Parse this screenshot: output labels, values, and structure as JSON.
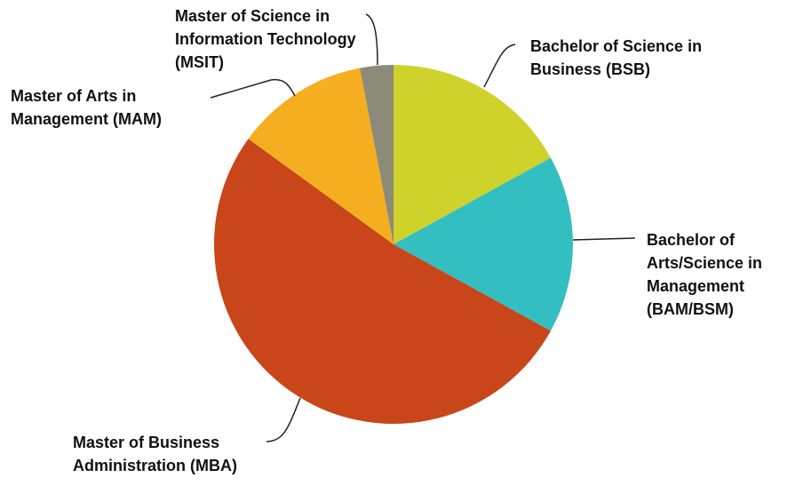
{
  "chart_data": {
    "type": "pie",
    "categories": [
      "Bachelor of Science in Business (BSB)",
      "Bachelor of Arts/Science in Management (BAM/BSM)",
      "Master of Business Administration (MBA)",
      "Master of Arts in Management (MAM)",
      "Master of Science in Information Technology (MSIT)"
    ],
    "values": [
      17,
      16,
      52,
      12,
      3
    ],
    "colors": [
      "#cfd22a",
      "#33bfc1",
      "#c8461a",
      "#f5ae20",
      "#8c8a78"
    ]
  }
}
